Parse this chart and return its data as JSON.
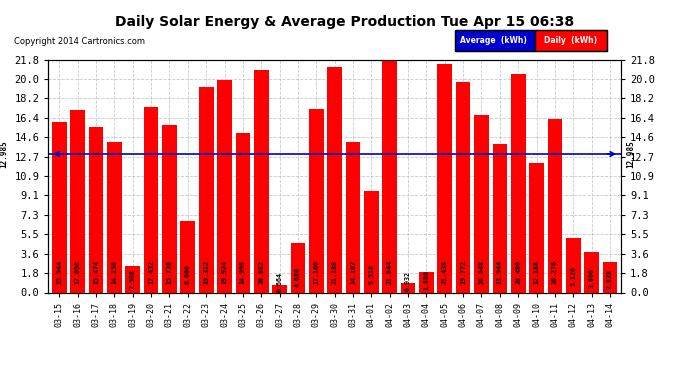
{
  "title": "Daily Solar Energy & Average Production Tue Apr 15 06:38",
  "copyright": "Copyright 2014 Cartronics.com",
  "average_line": 12.985,
  "average_label": "12.985",
  "bar_color": "#ff0000",
  "average_line_color": "#0000cc",
  "background_color": "#ffffff",
  "grid_color": "#bbbbbb",
  "ylim": [
    0,
    21.8
  ],
  "yticks": [
    0.0,
    1.8,
    3.6,
    5.5,
    7.3,
    9.1,
    10.9,
    12.7,
    14.6,
    16.4,
    18.2,
    20.0,
    21.8
  ],
  "categories": [
    "03-15",
    "03-16",
    "03-17",
    "03-18",
    "03-19",
    "03-20",
    "03-21",
    "03-22",
    "03-23",
    "03-24",
    "03-25",
    "03-26",
    "03-27",
    "03-28",
    "03-29",
    "03-30",
    "03-31",
    "04-01",
    "04-02",
    "04-03",
    "04-04",
    "04-05",
    "04-06",
    "04-07",
    "04-08",
    "04-09",
    "04-10",
    "04-11",
    "04-12",
    "04-13",
    "04-14"
  ],
  "values": [
    15.944,
    17.098,
    15.474,
    14.158,
    2.508,
    17.432,
    15.736,
    6.66,
    19.312,
    19.924,
    14.998,
    20.882,
    0.664,
    4.68,
    17.16,
    21.188,
    14.102,
    9.518,
    21.844,
    0.932,
    1.88,
    21.438,
    19.772,
    16.648,
    13.944,
    20.48,
    12.188,
    16.276,
    5.12,
    3.806,
    2.838
  ],
  "legend_avg_color": "#0000cc",
  "legend_daily_color": "#ff0000",
  "legend_avg_text": "Average  (kWh)",
  "legend_daily_text": "Daily  (kWh)",
  "title_fontsize": 10,
  "ytick_fontsize": 7.5,
  "xtick_fontsize": 6,
  "bar_label_fontsize": 4.8,
  "avg_label_fontsize": 5.5
}
